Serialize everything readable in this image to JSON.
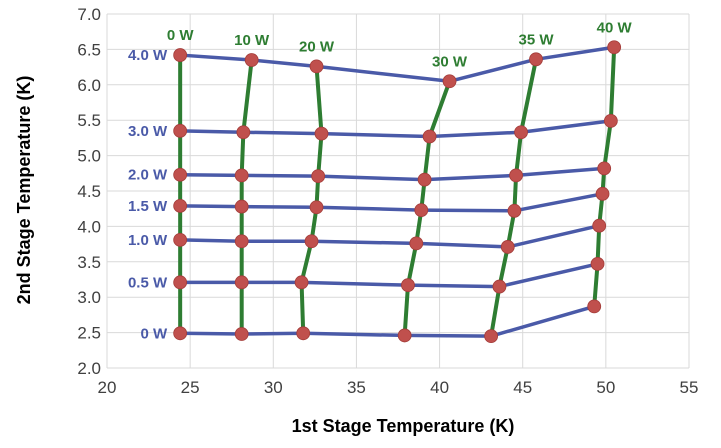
{
  "chart_data": {
    "type": "line",
    "title": "",
    "xlabel": "1st Stage Temperature (K)",
    "ylabel": "2nd Stage Temperature (K)",
    "xlim": [
      20,
      55
    ],
    "ylim": [
      2.0,
      7.0
    ],
    "xticks": [
      "20",
      "25",
      "30",
      "35",
      "40",
      "45",
      "50",
      "55"
    ],
    "yticks": [
      "2.0",
      "2.5",
      "3.0",
      "3.5",
      "4.0",
      "4.5",
      "5.0",
      "5.5",
      "6.0",
      "6.5",
      "7.0"
    ],
    "grid": true,
    "colors": {
      "constant_second_stage_lines": "#4a5aa8",
      "constant_first_stage_lines": "#2e7d32",
      "markers": "#c0504d",
      "row_label_text": "#4a5aa8",
      "col_label_text": "#2e7d32",
      "grid": "#d9d9d9"
    },
    "first_stage_loads": [
      "0 W",
      "10 W",
      "20 W",
      "30 W",
      "35 W",
      "40 W"
    ],
    "second_stage_loads": [
      "0 W",
      "0.5 W",
      "1.0 W",
      "1.5 W",
      "2.0 W",
      "3.0 W",
      "4.0 W"
    ],
    "points": [
      [
        [
          24.4,
          2.49
        ],
        [
          28.1,
          2.48
        ],
        [
          31.8,
          2.49
        ],
        [
          37.9,
          2.46
        ],
        [
          43.1,
          2.45
        ],
        [
          49.3,
          2.87
        ]
      ],
      [
        [
          24.4,
          3.21
        ],
        [
          28.1,
          3.21
        ],
        [
          31.7,
          3.21
        ],
        [
          38.1,
          3.17
        ],
        [
          43.6,
          3.15
        ],
        [
          49.5,
          3.47
        ]
      ],
      [
        [
          24.4,
          3.81
        ],
        [
          28.1,
          3.79
        ],
        [
          32.3,
          3.79
        ],
        [
          38.6,
          3.76
        ],
        [
          44.1,
          3.71
        ],
        [
          49.6,
          4.01
        ]
      ],
      [
        [
          24.4,
          4.29
        ],
        [
          28.1,
          4.28
        ],
        [
          32.6,
          4.27
        ],
        [
          38.9,
          4.23
        ],
        [
          44.5,
          4.22
        ],
        [
          49.8,
          4.46
        ]
      ],
      [
        [
          24.4,
          4.73
        ],
        [
          28.1,
          4.72
        ],
        [
          32.7,
          4.71
        ],
        [
          39.1,
          4.66
        ],
        [
          44.6,
          4.72
        ],
        [
          49.9,
          4.82
        ]
      ],
      [
        [
          24.4,
          5.35
        ],
        [
          28.2,
          5.33
        ],
        [
          32.9,
          5.31
        ],
        [
          39.4,
          5.27
        ],
        [
          44.9,
          5.33
        ],
        [
          50.3,
          5.49
        ]
      ],
      [
        [
          24.4,
          6.42
        ],
        [
          28.7,
          6.35
        ],
        [
          32.6,
          6.26
        ],
        [
          40.6,
          6.05
        ],
        [
          45.8,
          6.36
        ],
        [
          50.5,
          6.53
        ]
      ]
    ]
  }
}
